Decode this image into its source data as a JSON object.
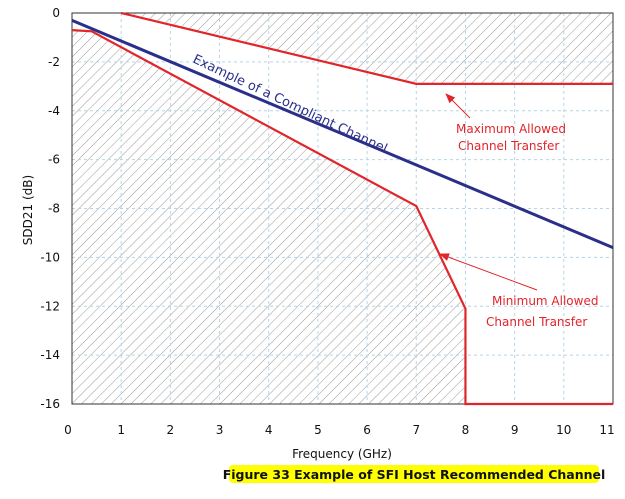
{
  "chart_data": {
    "type": "line",
    "title": "",
    "xlabel": "Frequency (GHz)",
    "ylabel": "SDD21 (dB)",
    "xlim": [
      0,
      11
    ],
    "ylim": [
      -16,
      0
    ],
    "xticks": [
      "0",
      "1",
      "2",
      "3",
      "4",
      "5",
      "6",
      "7",
      "8",
      "9",
      "10",
      "11"
    ],
    "yticks": [
      "0",
      "-2",
      "-4",
      "-6",
      "-8",
      "-10",
      "-12",
      "-14",
      "-16"
    ],
    "grid": true,
    "series": [
      {
        "name": "Maximum Allowed Channel Transfer",
        "color": "#e0252b",
        "points": [
          [
            1,
            0
          ],
          [
            7,
            -2.9
          ],
          [
            11,
            -2.9
          ]
        ]
      },
      {
        "name": "Example of a Compliant Channel",
        "color": "#2b2f8a",
        "points": [
          [
            0,
            -0.3
          ],
          [
            11,
            -9.6
          ]
        ]
      },
      {
        "name": "Minimum Allowed Channel Transfer",
        "color": "#e0252b",
        "points": [
          [
            0,
            -0.7
          ],
          [
            0.4,
            -0.75
          ],
          [
            7,
            -7.9
          ],
          [
            8,
            -12.1
          ],
          [
            8,
            -16
          ],
          [
            11,
            -16
          ]
        ]
      }
    ],
    "annotations": {
      "compliant": "Example of a Compliant Channel",
      "max_line1": "Maximum Allowed",
      "max_line2": "Channel Transfer",
      "min_line1": "Minimum Allowed",
      "min_line2": "Channel Transfer"
    }
  },
  "caption": "Figure 33  Example of SFI Host Recommended Channel"
}
